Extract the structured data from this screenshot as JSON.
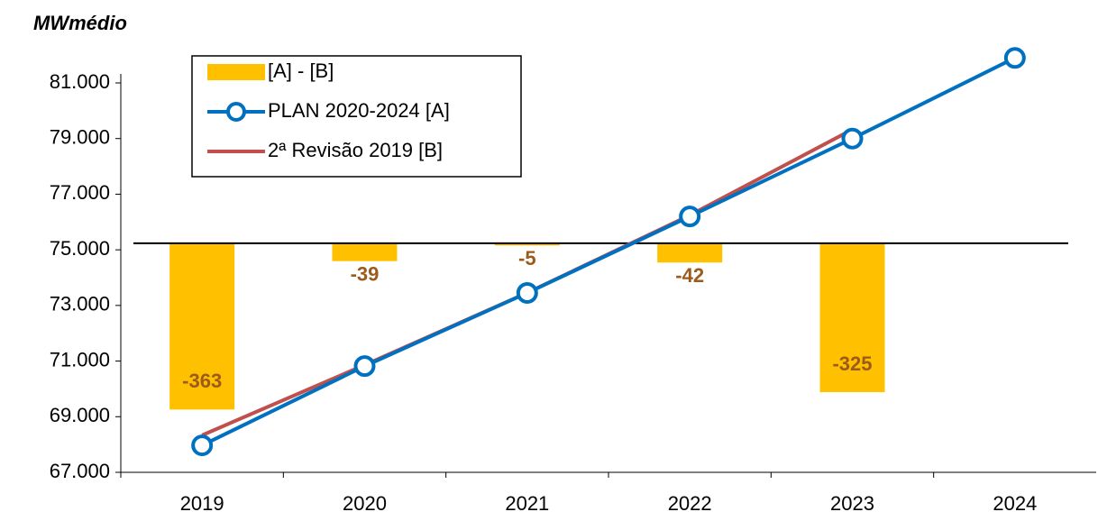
{
  "chart_data": {
    "type": "bar_line",
    "y_label": "MWmédio",
    "categories": [
      "2019",
      "2020",
      "2021",
      "2022",
      "2023",
      "2024"
    ],
    "ylim": [
      67000,
      81000
    ],
    "yticks": [
      {
        "value": 67000,
        "label": "67.000"
      },
      {
        "value": 69000,
        "label": "69.000"
      },
      {
        "value": 71000,
        "label": "71.000"
      },
      {
        "value": 73000,
        "label": "73.000"
      },
      {
        "value": 75000,
        "label": "75.000"
      },
      {
        "value": 77000,
        "label": "77.000"
      },
      {
        "value": 79000,
        "label": "79.000"
      },
      {
        "value": 81000,
        "label": "81.000"
      }
    ],
    "y2lim": [
      -500,
      350
    ],
    "series": [
      {
        "name": "[A] - [B]",
        "type": "bar",
        "axis": "y2",
        "color": "#ffc000",
        "label_color": "#9c5a1b",
        "values": [
          -363,
          -39,
          -5,
          -42,
          -325,
          null
        ]
      },
      {
        "name": "PLAN 2020-2024 [A]",
        "type": "line",
        "color": "#0070c0",
        "marker": true,
        "values": [
          67970,
          70820,
          73450,
          76200,
          79000,
          81900
        ]
      },
      {
        "name": "2ª Revisão 2019 [B]",
        "type": "line",
        "color": "#c0504d",
        "marker": false,
        "values": [
          68333,
          70859,
          73455,
          76242,
          79325,
          null
        ]
      }
    ]
  }
}
